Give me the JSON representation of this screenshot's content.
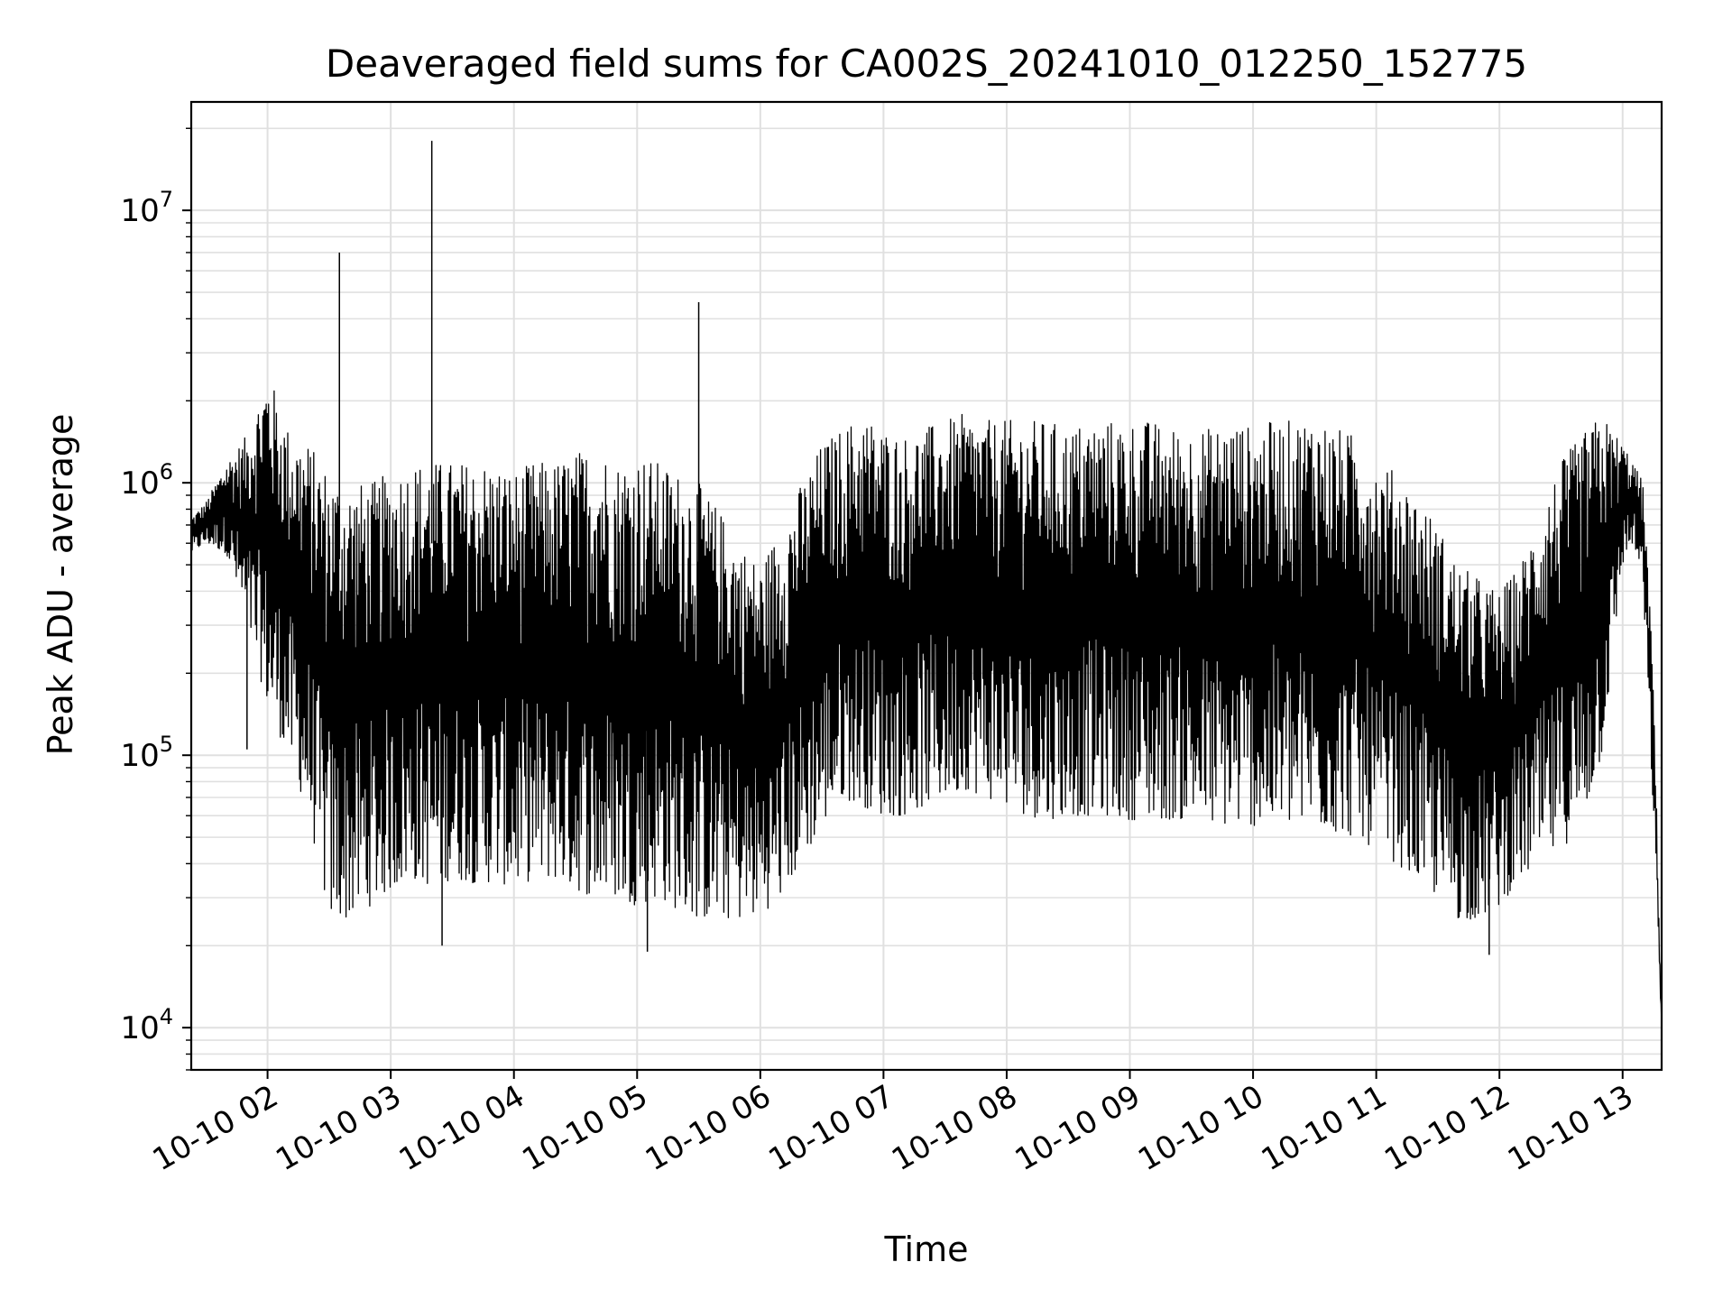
{
  "chart_data": {
    "type": "line",
    "title": "Deaveraged field sums for CA002S_20241010_012250_152775",
    "xlabel": "Time",
    "ylabel": "Peak ADU - average",
    "yscale": "log",
    "xlim": [
      "2024-10-10 01:22:50",
      "2024-10-10 13:19:00"
    ],
    "ylim": [
      7000,
      25000000
    ],
    "grid": true,
    "line_color": "#000000",
    "grid_color": "#e0e0e0",
    "x_ticks": [
      "2024-10-10 02:00",
      "2024-10-10 03:00",
      "2024-10-10 04:00",
      "2024-10-10 05:00",
      "2024-10-10 06:00",
      "2024-10-10 07:00",
      "2024-10-10 08:00",
      "2024-10-10 09:00",
      "2024-10-10 10:00",
      "2024-10-10 11:00",
      "2024-10-10 12:00",
      "2024-10-10 13:00"
    ],
    "x_tick_labels": [
      "10-10 02",
      "10-10 03",
      "10-10 04",
      "10-10 05",
      "10-10 06",
      "10-10 07",
      "10-10 08",
      "10-10 09",
      "10-10 10",
      "10-10 11",
      "10-10 12",
      "10-10 13"
    ],
    "y_ticks": [
      {
        "base": "10",
        "exp": "4",
        "value": 10000
      },
      {
        "base": "10",
        "exp": "5",
        "value": 100000
      },
      {
        "base": "10",
        "exp": "6",
        "value": 1000000
      },
      {
        "base": "10",
        "exp": "7",
        "value": 10000000
      }
    ],
    "series": [
      {
        "x": [
          "2024-10-10 01:23",
          "2024-10-10 01:30",
          "2024-10-10 01:40",
          "2024-10-10 01:50",
          "2024-10-10 02:00",
          "2024-10-10 02:10",
          "2024-10-10 02:20",
          "2024-10-10 02:30",
          "2024-10-10 02:40",
          "2024-10-10 02:50",
          "2024-10-10 03:00",
          "2024-10-10 03:10",
          "2024-10-10 03:20",
          "2024-10-10 03:30",
          "2024-10-10 03:40",
          "2024-10-10 03:50",
          "2024-10-10 04:00",
          "2024-10-10 04:10",
          "2024-10-10 04:20",
          "2024-10-10 04:30",
          "2024-10-10 04:40",
          "2024-10-10 04:50",
          "2024-10-10 05:00",
          "2024-10-10 05:10",
          "2024-10-10 05:20",
          "2024-10-10 05:30",
          "2024-10-10 05:40",
          "2024-10-10 05:50",
          "2024-10-10 06:00",
          "2024-10-10 06:10",
          "2024-10-10 06:20",
          "2024-10-10 06:30",
          "2024-10-10 06:40",
          "2024-10-10 06:50",
          "2024-10-10 07:00",
          "2024-10-10 07:10",
          "2024-10-10 07:20",
          "2024-10-10 07:30",
          "2024-10-10 07:40",
          "2024-10-10 07:50",
          "2024-10-10 08:00",
          "2024-10-10 08:10",
          "2024-10-10 08:20",
          "2024-10-10 08:30",
          "2024-10-10 08:40",
          "2024-10-10 08:50",
          "2024-10-10 09:00",
          "2024-10-10 09:10",
          "2024-10-10 09:20",
          "2024-10-10 09:30",
          "2024-10-10 09:40",
          "2024-10-10 09:50",
          "2024-10-10 10:00",
          "2024-10-10 10:10",
          "2024-10-10 10:20",
          "2024-10-10 10:30",
          "2024-10-10 10:40",
          "2024-10-10 10:50",
          "2024-10-10 11:00",
          "2024-10-10 11:10",
          "2024-10-10 11:20",
          "2024-10-10 11:30",
          "2024-10-10 11:40",
          "2024-10-10 11:50",
          "2024-10-10 12:00",
          "2024-10-10 12:10",
          "2024-10-10 12:20",
          "2024-10-10 12:30",
          "2024-10-10 12:40",
          "2024-10-10 12:50",
          "2024-10-10 13:00",
          "2024-10-10 13:05",
          "2024-10-10 13:10",
          "2024-10-10 13:15",
          "2024-10-10 13:19"
        ],
        "y_max": [
          750000,
          850000,
          1200000,
          1500000,
          2600000,
          1600000,
          1400000,
          1100000,
          1000000,
          1000000,
          1100000,
          1200000,
          1200000,
          1200000,
          1200000,
          1200000,
          1100000,
          1200000,
          1200000,
          1300000,
          1400000,
          1200000,
          1300000,
          1200000,
          1100000,
          1000000,
          800000,
          600000,
          500000,
          700000,
          1000000,
          1400000,
          1600000,
          1800000,
          1600000,
          1500000,
          1600000,
          1700000,
          1800000,
          1700000,
          1700000,
          1700000,
          1700000,
          1600000,
          1700000,
          1700000,
          1700000,
          1700000,
          1600000,
          1600000,
          1600000,
          1700000,
          1600000,
          1700000,
          1700000,
          1800000,
          1600000,
          1500000,
          1200000,
          1100000,
          900000,
          700000,
          500000,
          450000,
          400000,
          500000,
          800000,
          1200000,
          1500000,
          1800000,
          1400000,
          1200000,
          1000000,
          200000,
          10000
        ],
        "y_min": [
          550000,
          600000,
          550000,
          300000,
          150000,
          100000,
          60000,
          25000,
          25000,
          28000,
          32000,
          35000,
          33000,
          35000,
          34000,
          34000,
          33000,
          35000,
          35000,
          32000,
          30000,
          30000,
          28000,
          30000,
          27000,
          25000,
          25000,
          25000,
          26000,
          30000,
          40000,
          55000,
          70000,
          65000,
          60000,
          60000,
          65000,
          70000,
          75000,
          70000,
          65000,
          60000,
          58000,
          60000,
          60000,
          60000,
          58000,
          58000,
          58000,
          58000,
          55000,
          55000,
          55000,
          55000,
          55000,
          55000,
          52000,
          50000,
          45000,
          40000,
          35000,
          30000,
          25000,
          25000,
          28000,
          35000,
          40000,
          45000,
          55000,
          100000,
          500000,
          600000,
          400000,
          60000,
          10000
        ]
      }
    ],
    "spikes": [
      {
        "x": "2024-10-10 01:50",
        "y": 105000
      },
      {
        "x": "2024-10-10 02:35",
        "y": 7000000
      },
      {
        "x": "2024-10-10 03:20",
        "y": 18000000
      },
      {
        "x": "2024-10-10 03:25",
        "y": 20000
      },
      {
        "x": "2024-10-10 05:30",
        "y": 4600000
      },
      {
        "x": "2024-10-10 05:05",
        "y": 19000
      },
      {
        "x": "2024-10-10 11:55",
        "y": 18500
      }
    ]
  }
}
